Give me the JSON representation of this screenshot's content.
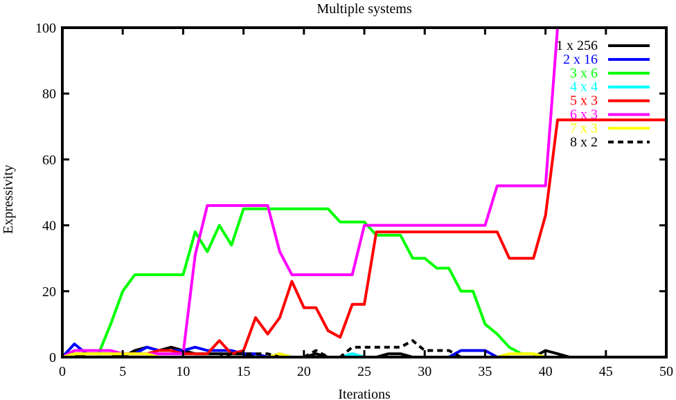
{
  "chart_data": {
    "type": "line",
    "title": "Multiple systems",
    "xlabel": "Iterations",
    "ylabel": "Expressivity",
    "xlim": [
      0,
      50
    ],
    "ylim": [
      0,
      100
    ],
    "xticks": [
      0,
      5,
      10,
      15,
      20,
      25,
      30,
      35,
      40,
      45,
      50
    ],
    "yticks": [
      0,
      20,
      40,
      60,
      80,
      100
    ],
    "grid": false,
    "legend_position": "top-right",
    "x": [
      0,
      1,
      2,
      3,
      4,
      5,
      6,
      7,
      8,
      9,
      10,
      11,
      12,
      13,
      14,
      15,
      16,
      17,
      18,
      19,
      20,
      21,
      22,
      23,
      24,
      25,
      26,
      27,
      28,
      29,
      30,
      31,
      32,
      33,
      34,
      35,
      36,
      37,
      38,
      39,
      40,
      41,
      42,
      43,
      44,
      45,
      46,
      47,
      48,
      49,
      50
    ],
    "series": [
      {
        "name": "1 x 256",
        "color": "#000000",
        "dash": "solid",
        "values": [
          0,
          0,
          1,
          1,
          1,
          0,
          2,
          3,
          2,
          3,
          2,
          1,
          1,
          1,
          1,
          1,
          0,
          0,
          0,
          0,
          0,
          1,
          0,
          0,
          0,
          0,
          0,
          1,
          1,
          0,
          0,
          0,
          0,
          0,
          0,
          0,
          0,
          0,
          0,
          0,
          2,
          1,
          0,
          0,
          0,
          0,
          0,
          0,
          0,
          0,
          0
        ]
      },
      {
        "name": "2 x 16",
        "color": "#0000ff",
        "dash": "solid",
        "values": [
          0,
          4,
          1,
          1,
          1,
          1,
          1,
          3,
          2,
          2,
          2,
          3,
          2,
          2,
          2,
          1,
          1,
          0,
          1,
          0,
          0,
          0,
          0,
          0,
          1,
          0,
          0,
          0,
          0,
          0,
          0,
          0,
          0,
          2,
          2,
          2,
          0,
          0,
          0,
          0,
          0,
          0,
          0,
          0,
          0,
          0,
          0,
          0,
          0,
          0,
          0
        ]
      },
      {
        "name": "3 x 6",
        "color": "#00ff00",
        "dash": "solid",
        "values": [
          0,
          1,
          1,
          1,
          10,
          20,
          25,
          25,
          25,
          25,
          25,
          38,
          32,
          40,
          34,
          45,
          45,
          45,
          45,
          45,
          45,
          45,
          45,
          41,
          41,
          41,
          37,
          37,
          37,
          30,
          30,
          27,
          27,
          20,
          20,
          10,
          7,
          3,
          1,
          1,
          0,
          0,
          0,
          0,
          0,
          0,
          0,
          0,
          0,
          0,
          0
        ]
      },
      {
        "name": "4 x 4",
        "color": "#00ffff",
        "dash": "solid",
        "values": [
          0,
          0,
          0,
          0,
          0,
          0,
          0,
          0,
          0,
          0,
          0,
          0,
          0,
          0,
          0,
          0,
          0,
          0,
          0,
          0,
          0,
          0,
          0,
          0,
          1,
          0,
          0,
          0,
          0,
          0,
          0,
          0,
          0,
          0,
          0,
          0,
          0,
          0,
          0,
          0,
          0,
          0,
          0,
          0,
          0,
          0,
          0,
          0,
          0,
          0,
          0
        ]
      },
      {
        "name": "5 x 3",
        "color": "#ff0000",
        "dash": "solid",
        "values": [
          0,
          1,
          1,
          1,
          1,
          1,
          1,
          1,
          2,
          2,
          1,
          1,
          1,
          5,
          1,
          2,
          12,
          7,
          12,
          23,
          15,
          15,
          8,
          6,
          16,
          16,
          38,
          38,
          38,
          38,
          38,
          38,
          38,
          38,
          38,
          38,
          38,
          30,
          30,
          30,
          43,
          72,
          72,
          72,
          72,
          72,
          72,
          72,
          72,
          72,
          72
        ]
      },
      {
        "name": "6 x 3",
        "color": "#ff00ff",
        "dash": "solid",
        "values": [
          0,
          2,
          2,
          2,
          2,
          1,
          1,
          1,
          1,
          1,
          1,
          31,
          46,
          46,
          46,
          46,
          46,
          46,
          32,
          25,
          25,
          25,
          25,
          25,
          25,
          40,
          40,
          40,
          40,
          40,
          40,
          40,
          40,
          40,
          40,
          40,
          52,
          52,
          52,
          52,
          52,
          100,
          100,
          100,
          100,
          100,
          100,
          100,
          100,
          100,
          100
        ]
      },
      {
        "name": "7 x 3",
        "color": "#ffff00",
        "dash": "solid",
        "values": [
          0,
          1,
          1,
          1,
          1,
          1,
          1,
          1,
          0,
          0,
          0,
          0,
          0,
          0,
          0,
          0,
          0,
          0,
          1,
          0,
          0,
          0,
          0,
          0,
          0,
          0,
          0,
          0,
          0,
          0,
          0,
          0,
          0,
          0,
          0,
          0,
          0,
          1,
          1,
          1,
          0,
          0,
          0,
          0,
          0,
          0,
          0,
          0,
          0,
          0,
          0
        ]
      },
      {
        "name": "8 x 2",
        "color": "#000000",
        "dash": "dotted",
        "values": [
          0,
          0,
          0,
          0,
          0,
          0,
          0,
          0,
          0,
          0,
          0,
          0,
          0,
          0,
          1,
          1,
          1,
          1,
          0,
          0,
          0,
          2,
          0,
          0,
          3,
          3,
          3,
          3,
          3,
          5,
          2,
          2,
          2,
          0,
          0,
          0,
          0,
          0,
          0,
          0,
          0,
          0,
          0,
          0,
          0,
          0,
          0,
          0,
          0,
          0,
          0
        ]
      }
    ]
  }
}
